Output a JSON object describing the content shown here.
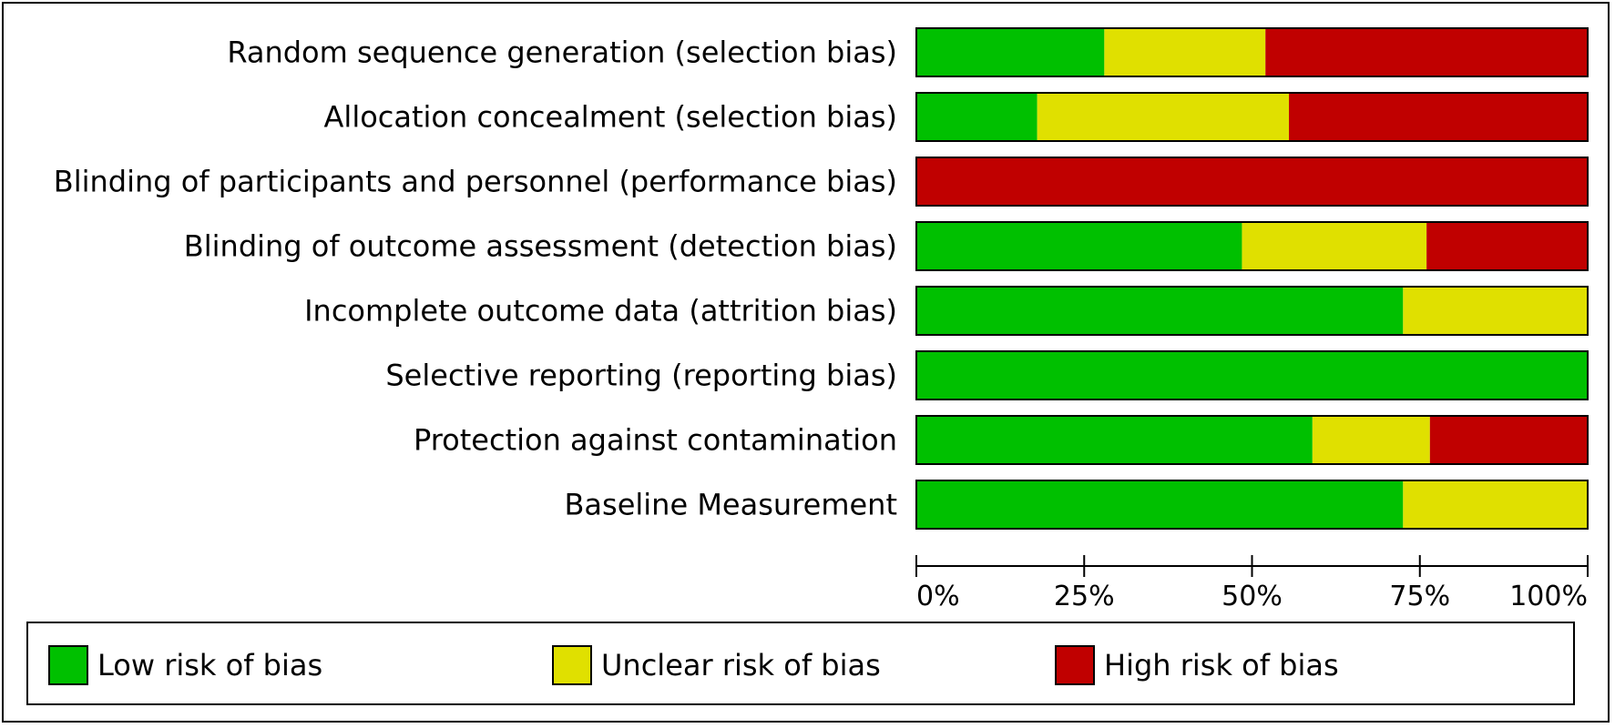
{
  "chart_data": {
    "type": "bar",
    "stacked": true,
    "orientation": "horizontal",
    "categories": [
      "Random sequence generation (selection bias)",
      "Allocation concealment (selection bias)",
      "Blinding of participants and personnel (performance bias)",
      "Blinding of outcome assessment (detection bias)",
      "Incomplete outcome data (attrition bias)",
      "Selective reporting (reporting bias)",
      "Protection against contamination",
      "Baseline Measurement"
    ],
    "series": [
      {
        "name": "Low risk of bias",
        "color": "#00c000",
        "values": [
          28,
          18,
          0,
          48.5,
          72.5,
          100,
          59,
          72.5
        ]
      },
      {
        "name": "Unclear risk of bias",
        "color": "#e0e000",
        "values": [
          24,
          37.5,
          0,
          27.5,
          27.5,
          0,
          17.5,
          27.5
        ]
      },
      {
        "name": "High risk of bias",
        "color": "#c00000",
        "values": [
          48,
          44.5,
          100,
          24,
          0,
          0,
          23.5,
          0
        ]
      }
    ],
    "xticks": [
      "0%",
      "25%",
      "50%",
      "75%",
      "100%"
    ],
    "xlim": [
      0,
      100
    ],
    "grid": false,
    "legend_position": "bottom"
  }
}
